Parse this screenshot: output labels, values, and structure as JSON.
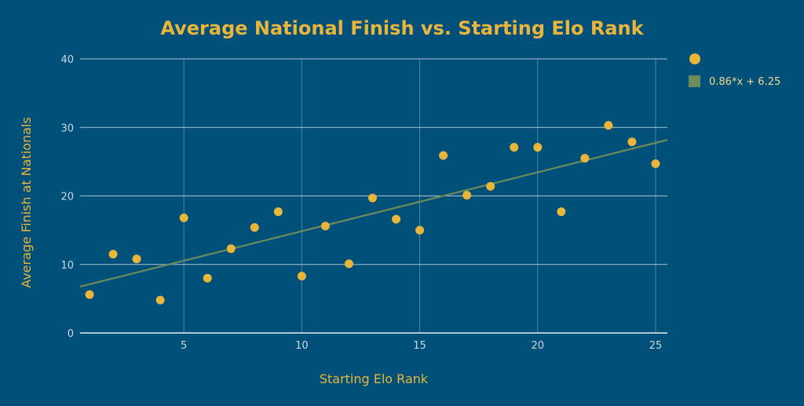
{
  "chart_data": {
    "type": "scatter",
    "title": "Average National Finish vs. Starting Elo Rank",
    "xlabel": "Starting Elo Rank",
    "ylabel": "Average Finish at Nationals",
    "xlim": [
      0.6,
      25.5
    ],
    "ylim": [
      0,
      40
    ],
    "xticks": [
      5,
      10,
      15,
      20,
      25
    ],
    "yticks": [
      0,
      10,
      20,
      30,
      40
    ],
    "grid": true,
    "legend_position": "top-right",
    "series": [
      {
        "name": "",
        "kind": "markers",
        "color": "#e9b53a",
        "x": [
          1,
          2,
          3,
          4,
          5,
          6,
          7,
          8,
          9,
          10,
          11,
          12,
          13,
          14,
          15,
          16,
          17,
          18,
          19,
          20,
          21,
          22,
          23,
          24,
          25
        ],
        "y": [
          5.6,
          11.5,
          10.8,
          4.8,
          16.8,
          8.0,
          12.3,
          15.4,
          17.7,
          8.3,
          15.6,
          10.1,
          19.7,
          16.6,
          15.0,
          25.9,
          20.1,
          21.4,
          27.1,
          27.1,
          17.7,
          25.5,
          30.3,
          27.9,
          24.7
        ]
      },
      {
        "name": "0.86*x + 6.25",
        "kind": "trendline",
        "color": "#6e8b5c",
        "slope": 0.86,
        "intercept": 6.25,
        "x_range": [
          0.6,
          25.5
        ]
      }
    ]
  }
}
